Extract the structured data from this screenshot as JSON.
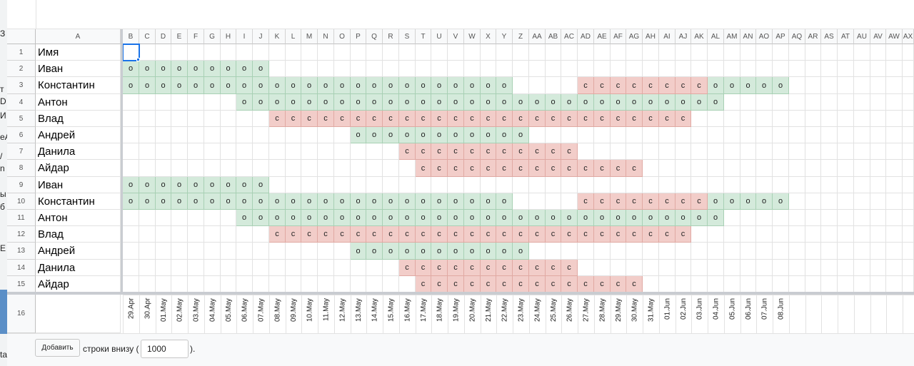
{
  "colors": {
    "green_fill": "#d4eadb",
    "green_border": "#a8d0b4",
    "red_fill": "#f2cdc9",
    "red_border": "#e0a9a3",
    "selection": "#1a73e8"
  },
  "left_fragments": [
    {
      "text": "З"
    },
    {
      "text": "т"
    },
    {
      "text": "D"
    },
    {
      "text": "И"
    },
    {
      "text": "еА"
    },
    {
      "text": "/"
    },
    {
      "text": "n"
    },
    {
      "text": "ы"
    },
    {
      "text": "б"
    },
    {
      "text": "Е"
    },
    {
      "text": "ta"
    }
  ],
  "columns": [
    "B",
    "C",
    "D",
    "E",
    "F",
    "G",
    "H",
    "I",
    "J",
    "K",
    "L",
    "M",
    "N",
    "O",
    "P",
    "Q",
    "R",
    "S",
    "T",
    "U",
    "V",
    "W",
    "X",
    "Y",
    "Z",
    "AA",
    "AB",
    "AC",
    "AD",
    "AE",
    "AF",
    "AG",
    "AH",
    "AI",
    "AJ",
    "AK",
    "AL",
    "AM",
    "AN",
    "AO",
    "AP",
    "AQ",
    "AR",
    "AS",
    "AT",
    "AU",
    "AV",
    "AW",
    "AX"
  ],
  "column_a_label": "A",
  "row_numbers": [
    "1",
    "2",
    "3",
    "4",
    "5",
    "6",
    "7",
    "8",
    "9",
    "10",
    "11",
    "12",
    "13",
    "14",
    "15",
    "16"
  ],
  "header_name": "Имя",
  "rows": [
    {
      "name": "Иван",
      "segments": [
        {
          "start": 0,
          "end": 8,
          "mark": "о",
          "color": "green"
        }
      ]
    },
    {
      "name": "Константин",
      "segments": [
        {
          "start": 0,
          "end": 23,
          "mark": "о",
          "color": "green"
        },
        {
          "start": 28,
          "end": 35,
          "mark": "с",
          "color": "red"
        },
        {
          "start": 36,
          "end": 40,
          "mark": "о",
          "color": "green"
        }
      ]
    },
    {
      "name": "Антон",
      "segments": [
        {
          "start": 7,
          "end": 36,
          "mark": "о",
          "color": "green"
        }
      ]
    },
    {
      "name": "Влад",
      "segments": [
        {
          "start": 9,
          "end": 34,
          "mark": "с",
          "color": "red"
        }
      ]
    },
    {
      "name": "Андрей",
      "segments": [
        {
          "start": 14,
          "end": 24,
          "mark": "о",
          "color": "green"
        }
      ]
    },
    {
      "name": "Данила",
      "segments": [
        {
          "start": 17,
          "end": 27,
          "mark": "с",
          "color": "red"
        }
      ]
    },
    {
      "name": "Айдар",
      "segments": [
        {
          "start": 18,
          "end": 31,
          "mark": "с",
          "color": "red"
        }
      ]
    },
    {
      "name": "Иван",
      "segments": [
        {
          "start": 0,
          "end": 8,
          "mark": "о",
          "color": "green"
        }
      ]
    },
    {
      "name": "Константин",
      "segments": [
        {
          "start": 0,
          "end": 23,
          "mark": "о",
          "color": "green"
        },
        {
          "start": 28,
          "end": 35,
          "mark": "с",
          "color": "red"
        },
        {
          "start": 36,
          "end": 40,
          "mark": "о",
          "color": "green"
        }
      ]
    },
    {
      "name": "Антон",
      "segments": [
        {
          "start": 7,
          "end": 36,
          "mark": "о",
          "color": "green"
        }
      ]
    },
    {
      "name": "Влад",
      "segments": [
        {
          "start": 9,
          "end": 34,
          "mark": "с",
          "color": "red"
        }
      ]
    },
    {
      "name": "Андрей",
      "segments": [
        {
          "start": 14,
          "end": 24,
          "mark": "о",
          "color": "green"
        }
      ]
    },
    {
      "name": "Данила",
      "segments": [
        {
          "start": 17,
          "end": 27,
          "mark": "с",
          "color": "red"
        }
      ]
    },
    {
      "name": "Айдар",
      "segments": [
        {
          "start": 18,
          "end": 31,
          "mark": "с",
          "color": "red"
        }
      ]
    }
  ],
  "dates": [
    "29.Apr",
    "30.Apr",
    "01.May",
    "02.May",
    "03.May",
    "04.May",
    "05.May",
    "06.May",
    "07.May",
    "08.May",
    "09.May",
    "10.May",
    "11.May",
    "12.May",
    "13.May",
    "14.May",
    "15.May",
    "16.May",
    "17.May",
    "18.May",
    "19.May",
    "20.May",
    "21.May",
    "22.May",
    "23.May",
    "24.May",
    "25.May",
    "26.May",
    "27.May",
    "28.May",
    "29.May",
    "30.May",
    "31.May",
    "01.Jun",
    "02.Jun",
    "03.Jun",
    "04.Jun",
    "05.Jun",
    "06.Jun",
    "07.Jun",
    "08.Jun"
  ],
  "footer": {
    "add_button": "Добавить",
    "text_before": "строки внизу (",
    "rows_value": "1000",
    "text_after": ")."
  }
}
